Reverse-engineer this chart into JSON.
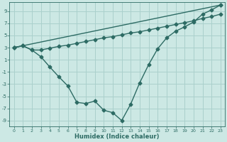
{
  "xlabel": "Humidex (Indice chaleur)",
  "background_color": "#cce8e4",
  "grid_color": "#aad0cc",
  "line_color": "#2d6b64",
  "xlim": [
    -0.5,
    23.5
  ],
  "ylim": [
    -10,
    10.5
  ],
  "yticks": [
    -9,
    -7,
    -5,
    -3,
    -1,
    1,
    3,
    5,
    7,
    9
  ],
  "xticks": [
    0,
    1,
    2,
    3,
    4,
    5,
    6,
    7,
    8,
    9,
    10,
    11,
    12,
    13,
    14,
    15,
    16,
    17,
    18,
    19,
    20,
    21,
    22,
    23
  ],
  "curve1_x": [
    0,
    1,
    2,
    3,
    4,
    5,
    6,
    7,
    8,
    9,
    10,
    11,
    12,
    13,
    14,
    15,
    16,
    17,
    18,
    19,
    20,
    21,
    22,
    23
  ],
  "curve1_y": [
    3.0,
    3.3,
    2.6,
    1.5,
    -0.2,
    -1.8,
    -3.3,
    -6.0,
    -6.2,
    -5.8,
    -7.3,
    -7.7,
    -9.0,
    -6.3,
    -2.8,
    0.2,
    2.8,
    4.6,
    5.7,
    6.4,
    7.2,
    8.5,
    9.2,
    10.0
  ],
  "curve2_x": [
    0,
    23
  ],
  "curve2_y": [
    3.0,
    10.0
  ],
  "curve3_x": [
    0,
    1,
    2,
    3,
    4,
    5,
    6,
    7,
    8,
    9,
    10,
    11,
    12,
    13,
    14,
    15,
    16,
    17,
    18,
    19,
    20,
    21,
    22,
    23
  ],
  "curve3_y": [
    3.0,
    3.3,
    2.6,
    2.6,
    2.9,
    3.2,
    3.4,
    3.7,
    4.0,
    4.3,
    4.6,
    4.8,
    5.1,
    5.4,
    5.6,
    5.9,
    6.2,
    6.5,
    6.8,
    7.1,
    7.4,
    7.8,
    8.1,
    8.5
  ],
  "marker": "D",
  "marker_size": 2.5,
  "line_width": 1.0
}
